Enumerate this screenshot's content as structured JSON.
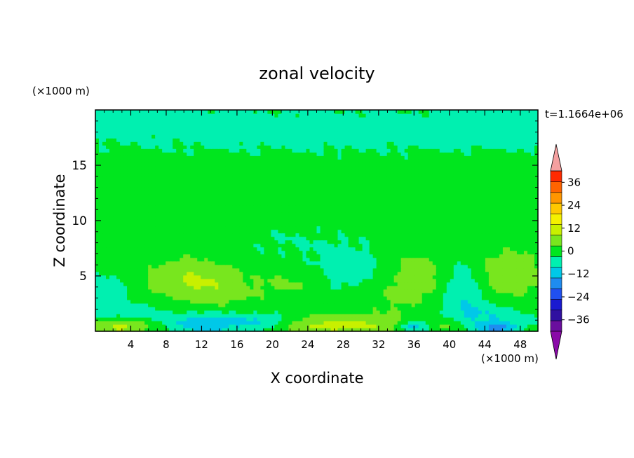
{
  "chart_data": {
    "type": "heatmap",
    "title": "zonal velocity",
    "xlabel": "X coordinate",
    "ylabel": "Z coordinate",
    "x_units": "(×1000 m)",
    "y_units": "(×1000 m)",
    "time_label": "t=1.1664e+06",
    "xlim": [
      0,
      50
    ],
    "ylim": [
      0,
      20
    ],
    "x_ticks": [
      4,
      8,
      12,
      16,
      20,
      24,
      28,
      32,
      36,
      40,
      44,
      48
    ],
    "y_ticks": [
      5,
      10,
      15
    ],
    "x_tick_labels": [
      "4",
      "8",
      "12",
      "16",
      "20",
      "24",
      "28",
      "32",
      "36",
      "40",
      "44",
      "48"
    ],
    "y_tick_labels": [
      "5",
      "10",
      "15"
    ],
    "colorbar": {
      "levels": [
        -42,
        -36,
        -30,
        -24,
        -18,
        -12,
        -6,
        0,
        6,
        12,
        18,
        24,
        30,
        36,
        42
      ],
      "tick_values": [
        36,
        24,
        12,
        0,
        -12,
        -24,
        -36
      ],
      "tick_labels": [
        "36",
        "24",
        "12",
        "0",
        "−12",
        "−24",
        "−36"
      ],
      "colors": [
        "#6a0e9e",
        "#3010a0",
        "#1a1ad0",
        "#2050f0",
        "#1f8cf0",
        "#00c8e8",
        "#00f0b0",
        "#00e61e",
        "#78e61e",
        "#c8f000",
        "#f5f000",
        "#ffc800",
        "#ff9600",
        "#ff6400",
        "#ff2a00"
      ],
      "under_color": "#8a0aa8",
      "over_color": "#f4a0a0"
    },
    "background_value": 3,
    "features": [
      {
        "x": 25,
        "y": 18.2,
        "sx": 30,
        "sy": 1.8,
        "amp": -5
      },
      {
        "x": 46,
        "y": 18.5,
        "sx": 5,
        "sy": 1.2,
        "amp": -3
      },
      {
        "x": 3,
        "y": 19.5,
        "sx": 6,
        "sy": 0.8,
        "amp": -4
      },
      {
        "x": 22,
        "y": 8,
        "sx": 6,
        "sy": 1.6,
        "amp": -3
      },
      {
        "x": 38,
        "y": 8.2,
        "sx": 5,
        "sy": 1.4,
        "amp": -2.5
      },
      {
        "x": 10.5,
        "y": 4.7,
        "sx": 3.2,
        "sy": 1.3,
        "amp": 9
      },
      {
        "x": 15,
        "y": 3.8,
        "sx": 3,
        "sy": 1.2,
        "amp": 4
      },
      {
        "x": 22,
        "y": 4.6,
        "sx": 2.2,
        "sy": 1.0,
        "amp": 4
      },
      {
        "x": 37,
        "y": 5.6,
        "sx": 3,
        "sy": 1.8,
        "amp": 6
      },
      {
        "x": 46.5,
        "y": 5.2,
        "sx": 2.6,
        "sy": 1.5,
        "amp": 8
      },
      {
        "x": 34,
        "y": 3.2,
        "sx": 3,
        "sy": 1.5,
        "amp": 3
      },
      {
        "x": 29,
        "y": 5.5,
        "sx": 3,
        "sy": 1.4,
        "amp": -6
      },
      {
        "x": 41.5,
        "y": 4,
        "sx": 1.8,
        "sy": 1.8,
        "amp": -10
      },
      {
        "x": 1,
        "y": 3.5,
        "sx": 2.5,
        "sy": 1.6,
        "amp": -6
      },
      {
        "x": 4,
        "y": 1.8,
        "sx": 3,
        "sy": 0.6,
        "amp": -5
      },
      {
        "x": 12,
        "y": 0.7,
        "sx": 3.5,
        "sy": 0.7,
        "amp": -12
      },
      {
        "x": 19,
        "y": 0.9,
        "sx": 3,
        "sy": 0.6,
        "amp": -9
      },
      {
        "x": 3,
        "y": 0.5,
        "sx": 2.5,
        "sy": 0.5,
        "amp": 12
      },
      {
        "x": 27,
        "y": 0.6,
        "sx": 5,
        "sy": 0.6,
        "amp": 12
      },
      {
        "x": 44,
        "y": 1.4,
        "sx": 4,
        "sy": 0.8,
        "amp": -8
      },
      {
        "x": 45.5,
        "y": 0.3,
        "sx": 1.5,
        "sy": 0.4,
        "amp": -16
      },
      {
        "x": 36,
        "y": 0.4,
        "sx": 1.2,
        "sy": 0.4,
        "amp": -12
      },
      {
        "x": 40,
        "y": 0.7,
        "sx": 1.2,
        "sy": 0.5,
        "amp": 7
      }
    ]
  }
}
